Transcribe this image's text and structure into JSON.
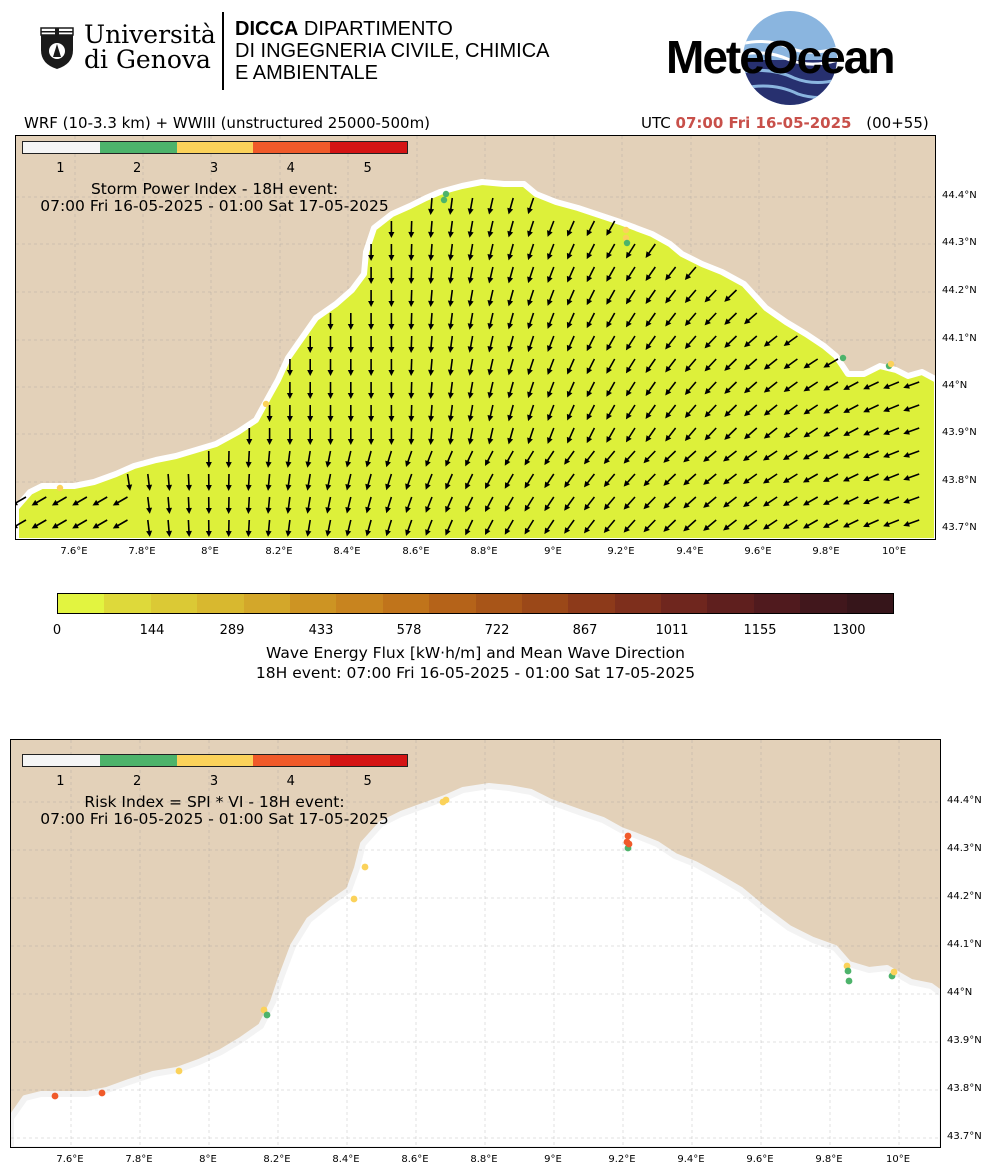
{
  "header": {
    "university_line1": "Università",
    "university_line2": "di Genova",
    "dept_bold": "DICCA",
    "dept_line1": " DIPARTIMENTO",
    "dept_line2": "DI INGEGNERIA CIVILE, CHIMICA",
    "dept_line3": "E AMBIENTALE",
    "brand": "MeteOcean",
    "model_label": "WRF (10-3.3 km) + WWIII (unstructured 25000-500m)",
    "utc_label": "UTC",
    "utc_time": "07:00 Fri 16-05-2025",
    "utc_offset": "(00+55)",
    "accent_color": "#c8504a"
  },
  "legend": {
    "labels": [
      "1",
      "2",
      "3",
      "4",
      "5"
    ],
    "colors": [
      "#f5f5f5",
      "#4db36b",
      "#fbd25a",
      "#f05a2a",
      "#d41414"
    ]
  },
  "map1": {
    "title_line1": "Storm Power Index - 18H event:",
    "title_line2": "07:00 Fri 16-05-2025 - 01:00 Sat 17-05-2025",
    "xticks": [
      "7.6°E",
      "7.8°E",
      "8°E",
      "8.2°E",
      "8.4°E",
      "8.6°E",
      "8.8°E",
      "9°E",
      "9.2°E",
      "9.4°E",
      "9.6°E",
      "9.8°E",
      "10°E"
    ],
    "yticks": [
      "44.4°N",
      "44.3°N",
      "44.2°N",
      "44.1°N",
      "44°N",
      "43.9°N",
      "43.8°N",
      "43.7°N"
    ],
    "sea_color": "#ddf03a",
    "land_color": "#e3d1b9"
  },
  "colorbar": {
    "ticks": [
      "0",
      "144",
      "289",
      "433",
      "578",
      "722",
      "867",
      "1011",
      "1155",
      "1300"
    ],
    "colors": [
      "#e2f440",
      "#ded93a",
      "#dbc935",
      "#d8b82f",
      "#d3a72a",
      "#cd9423",
      "#c8841f",
      "#c0741b",
      "#b56319",
      "#a85518",
      "#9b4818",
      "#8d3a1a",
      "#7e2f1c",
      "#6f261e",
      "#5f1f1e",
      "#501a1e",
      "#41171c",
      "#36151a"
    ],
    "label_line1": "Wave Energy Flux [kW·h/m] and Mean Wave Direction",
    "label_line2": "18H event: 07:00 Fri 16-05-2025 - 01:00 Sat 17-05-2025"
  },
  "map2": {
    "title_line1": "Risk Index = SPI * VI - 18H event:",
    "title_line2": "07:00 Fri 16-05-2025 - 01:00 Sat 17-05-2025",
    "xticks": [
      "7.6°E",
      "7.8°E",
      "8°E",
      "8.2°E",
      "8.4°E",
      "8.6°E",
      "8.8°E",
      "9°E",
      "9.2°E",
      "9.4°E",
      "9.6°E",
      "9.8°E",
      "10°E"
    ],
    "yticks": [
      "44.4°N",
      "44.3°N",
      "44.2°N",
      "44.1°N",
      "44°N",
      "43.9°N",
      "43.8°N",
      "43.7°N"
    ],
    "sea_color": "#ffffff",
    "land_color": "#e3d1b9"
  }
}
